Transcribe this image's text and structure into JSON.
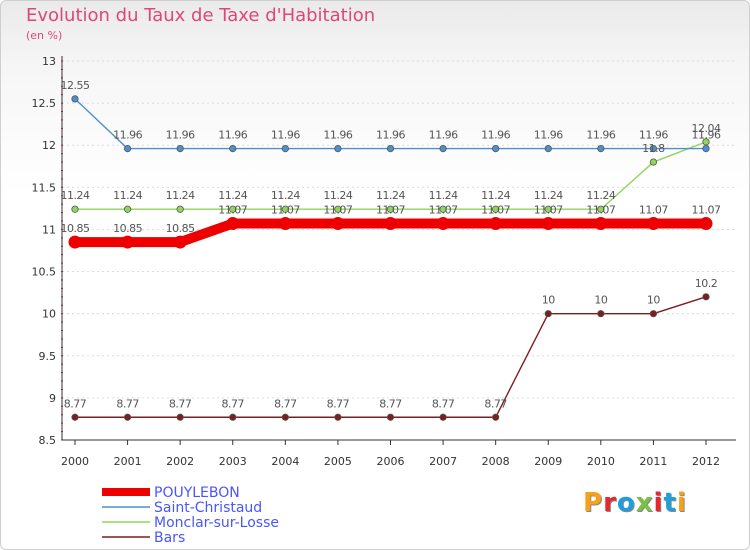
{
  "title": "Evolution du Taux de Taxe d'Habitation",
  "unit": "(en %)",
  "logo": {
    "letters": [
      "P",
      "r",
      "o",
      "x",
      "i",
      "t",
      "i"
    ],
    "colors": [
      "#f7a11a",
      "#e8262d",
      "#1f9fd9",
      "#7ac143",
      "#e8262d",
      "#1f9fd9",
      "#f7a11a"
    ]
  },
  "chart_data": {
    "type": "line",
    "title": "Evolution du Taux de Taxe d'Habitation",
    "ylabel": "(en %)",
    "xlabel": "",
    "ylim": [
      8.5,
      13
    ],
    "yticks": [
      "8.5",
      "9",
      "9.5",
      "10",
      "10.5",
      "11",
      "11.5",
      "12",
      "12.5",
      "13"
    ],
    "categories": [
      "2000",
      "2001",
      "2002",
      "2003",
      "2004",
      "2005",
      "2006",
      "2007",
      "2008",
      "2009",
      "2010",
      "2011",
      "2012"
    ],
    "legend_position": "bottom-left",
    "series": [
      {
        "name": "Bars",
        "color": "#7a1f1f",
        "values": [
          8.77,
          8.77,
          8.77,
          8.77,
          8.77,
          8.77,
          8.77,
          8.77,
          8.77,
          10,
          10,
          10,
          10.2
        ],
        "labels": [
          "8.77",
          "8.77",
          "8.77",
          "8.77",
          "8.77",
          "8.77",
          "8.77",
          "8.77",
          "8.77",
          "10",
          "10",
          "10",
          "10.2"
        ]
      },
      {
        "name": "Monclar-sur-Losse",
        "color": "#8fd65a",
        "values": [
          11.24,
          11.24,
          11.24,
          11.24,
          11.24,
          11.24,
          11.24,
          11.24,
          11.24,
          11.24,
          11.24,
          11.8,
          12.04
        ],
        "labels": [
          "11.24",
          "11.24",
          "11.24",
          "11.24",
          "11.24",
          "11.24",
          "11.24",
          "11.24",
          "11.24",
          "11.24",
          "11.24",
          "11.8",
          "12.04"
        ]
      },
      {
        "name": "Saint-Christaud",
        "color": "#4f8fd0",
        "values": [
          12.55,
          11.96,
          11.96,
          11.96,
          11.96,
          11.96,
          11.96,
          11.96,
          11.96,
          11.96,
          11.96,
          11.96,
          11.96
        ],
        "labels": [
          "12.55",
          "11.96",
          "11.96",
          "11.96",
          "11.96",
          "11.96",
          "11.96",
          "11.96",
          "11.96",
          "11.96",
          "11.96",
          "11.96",
          "11.96"
        ]
      },
      {
        "name": "POUYLEBON",
        "color": "#ee0000",
        "values": [
          10.85,
          10.85,
          10.85,
          11.07,
          11.07,
          11.07,
          11.07,
          11.07,
          11.07,
          11.07,
          11.07,
          11.07,
          11.07
        ],
        "labels": [
          "10.85",
          "10.85",
          "10.85",
          "11.07",
          "11.07",
          "11.07",
          "11.07",
          "11.07",
          "11.07",
          "11.07",
          "11.07",
          "11.07",
          "11.07"
        ]
      }
    ],
    "legend": [
      "POUYLEBON",
      "Saint-Christaud",
      "Monclar-sur-Losse",
      "Bars"
    ]
  }
}
